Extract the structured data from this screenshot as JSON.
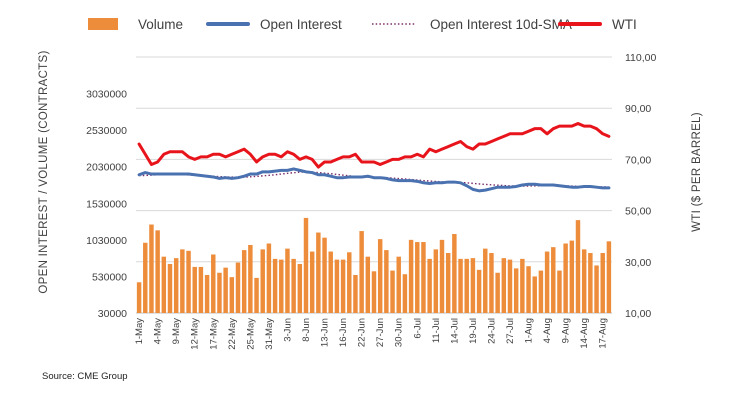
{
  "chart_data": {
    "type": "combo",
    "source": "Source: CME Group",
    "legend": [
      {
        "key": "volume",
        "label": "Volume",
        "kind": "bar"
      },
      {
        "key": "oi",
        "label": "Open Interest",
        "kind": "line"
      },
      {
        "key": "sma",
        "label": "Open Interest 10d-SMA",
        "kind": "dotted-line"
      },
      {
        "key": "wti",
        "label": "WTI",
        "kind": "line"
      }
    ],
    "colors": {
      "volume": "#ED8C3B",
      "oi": "#4A72B0",
      "sma": "#7B2C6B",
      "wti": "#E8141B",
      "grid": "#D9D9D9",
      "text": "#404040"
    },
    "y_left": {
      "label": "OPEN INTEREST / VOLUME (CONTRACTS)",
      "min": 30000,
      "max": 3530000,
      "ticks": [
        "3030000",
        "2530000",
        "2030000",
        "1530000",
        "1030000",
        "530000",
        "30000"
      ],
      "tick_values": [
        3030000,
        2530000,
        2030000,
        1530000,
        1030000,
        530000,
        30000
      ]
    },
    "y_right": {
      "label": "WTI ($ PER BARREL)",
      "min": 10,
      "max": 110,
      "ticks": [
        "110,00",
        "90,00",
        "70,00",
        "50,00",
        "30,00",
        "10,00"
      ],
      "tick_values": [
        110,
        90,
        70,
        50,
        30,
        10
      ]
    },
    "x_labels": [
      "1-May",
      "4-May",
      "9-May",
      "12-May",
      "17-May",
      "22-May",
      "25-May",
      "31-May",
      "3-Jun",
      "8-Jun",
      "13-Jun",
      "16-Jun",
      "22-Jun",
      "27-Jun",
      "30-Jun",
      "6-Jul",
      "11-Jul",
      "14-Jul",
      "19-Jul",
      "24-Jul",
      "27-Jul",
      "1-Aug",
      "4-Aug",
      "9-Aug",
      "14-Aug",
      "17-Aug"
    ],
    "x_label_index": [
      0,
      3,
      6,
      9,
      12,
      15,
      18,
      21,
      24,
      27,
      30,
      33,
      36,
      39,
      42,
      45,
      48,
      51,
      54,
      57,
      60,
      63,
      66,
      69,
      72,
      75
    ],
    "volume": [
      450000,
      990000,
      1240000,
      1160000,
      800000,
      700000,
      780000,
      900000,
      880000,
      660000,
      660000,
      550000,
      830000,
      580000,
      650000,
      520000,
      720000,
      890000,
      960000,
      510000,
      900000,
      980000,
      770000,
      760000,
      910000,
      770000,
      700000,
      1330000,
      870000,
      1130000,
      1060000,
      870000,
      760000,
      760000,
      860000,
      550000,
      1150000,
      800000,
      600000,
      1040000,
      890000,
      610000,
      800000,
      560000,
      1030000,
      1000000,
      1000000,
      770000,
      900000,
      1030000,
      850000,
      1110000,
      770000,
      770000,
      780000,
      620000,
      910000,
      850000,
      580000,
      780000,
      760000,
      640000,
      770000,
      670000,
      530000,
      610000,
      870000,
      930000,
      610000,
      980000,
      1020000,
      1300000,
      900000,
      850000,
      680000,
      850000,
      1010000
    ],
    "open_interest": [
      1920000,
      1950000,
      1930000,
      1930000,
      1930000,
      1930000,
      1930000,
      1930000,
      1930000,
      1920000,
      1910000,
      1900000,
      1890000,
      1870000,
      1880000,
      1870000,
      1880000,
      1900000,
      1930000,
      1930000,
      1960000,
      1960000,
      1970000,
      1980000,
      1980000,
      2000000,
      1980000,
      1960000,
      1950000,
      1920000,
      1920000,
      1900000,
      1880000,
      1880000,
      1890000,
      1890000,
      1890000,
      1900000,
      1880000,
      1880000,
      1870000,
      1850000,
      1840000,
      1840000,
      1840000,
      1830000,
      1810000,
      1800000,
      1810000,
      1810000,
      1820000,
      1820000,
      1810000,
      1770000,
      1720000,
      1700000,
      1710000,
      1730000,
      1750000,
      1750000,
      1750000,
      1760000,
      1780000,
      1790000,
      1790000,
      1780000,
      1780000,
      1780000,
      1770000,
      1760000,
      1750000,
      1750000,
      1760000,
      1760000,
      1750000,
      1740000,
      1740000
    ],
    "open_interest_sma": [
      1910000,
      1910000,
      1915000,
      1920000,
      1920000,
      1920000,
      1920000,
      1920000,
      1918000,
      1915000,
      1910000,
      1905000,
      1900000,
      1895000,
      1890000,
      1888000,
      1886000,
      1888000,
      1892000,
      1898000,
      1905000,
      1912000,
      1920000,
      1930000,
      1940000,
      1948000,
      1955000,
      1958000,
      1955000,
      1950000,
      1942000,
      1935000,
      1925000,
      1915000,
      1905000,
      1898000,
      1892000,
      1888000,
      1886000,
      1884000,
      1880000,
      1875000,
      1868000,
      1862000,
      1855000,
      1848000,
      1840000,
      1834000,
      1828000,
      1824000,
      1820000,
      1818000,
      1815000,
      1810000,
      1802000,
      1795000,
      1788000,
      1782000,
      1778000,
      1772000,
      1768000,
      1765000,
      1765000,
      1766000,
      1768000,
      1770000,
      1772000,
      1772000,
      1770000,
      1768000,
      1765000,
      1762000,
      1760000,
      1758000,
      1756000,
      1754000,
      1752000
    ],
    "wti": [
      76,
      72,
      68,
      69,
      72,
      73,
      73,
      73,
      71,
      70,
      71,
      71,
      72,
      72,
      71,
      72,
      73,
      74,
      72,
      69,
      71,
      72,
      72,
      71,
      73,
      72,
      70,
      71,
      70,
      67,
      69,
      69,
      70,
      71,
      71,
      72,
      69,
      69,
      69,
      68,
      69,
      70,
      70,
      71,
      71,
      72,
      71,
      74,
      73,
      74,
      75,
      76,
      77,
      75,
      74,
      76,
      76,
      77,
      78,
      79,
      80,
      80,
      80,
      81,
      82,
      82,
      80,
      82,
      83,
      83,
      83,
      84,
      83,
      83,
      82,
      80,
      79
    ]
  }
}
